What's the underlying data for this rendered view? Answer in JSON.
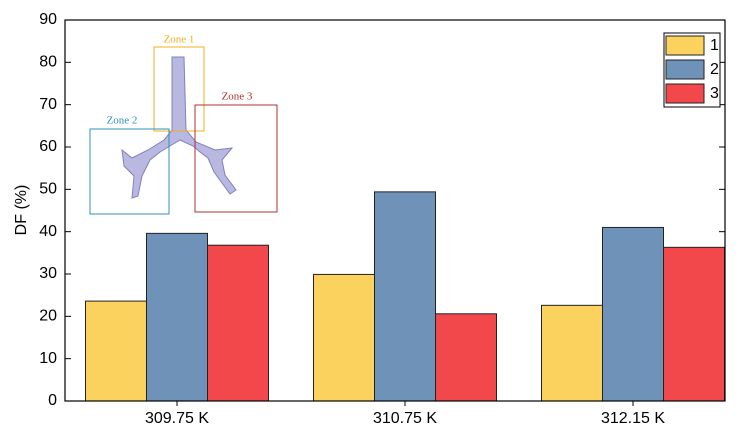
{
  "chart_data": {
    "type": "bar",
    "y_label": "DF (%)",
    "categories": [
      "309.75 K",
      "310.75 K",
      "312.15 K"
    ],
    "series": [
      {
        "name": "1",
        "color": "#fcd25e",
        "values": [
          23.6,
          29.9,
          22.6
        ]
      },
      {
        "name": "2",
        "color": "#6f93b8",
        "values": [
          39.6,
          49.4,
          41.0
        ]
      },
      {
        "name": "3",
        "color": "#f2484c",
        "values": [
          36.8,
          20.6,
          36.3
        ]
      }
    ],
    "ylim": [
      0,
      90
    ],
    "yticks": [
      0,
      10,
      20,
      30,
      40,
      50,
      60,
      70,
      80,
      90
    ],
    "legend": "upper-right",
    "annotations": [
      "Zone 1",
      "Zone 2",
      "Zone 3"
    ]
  }
}
